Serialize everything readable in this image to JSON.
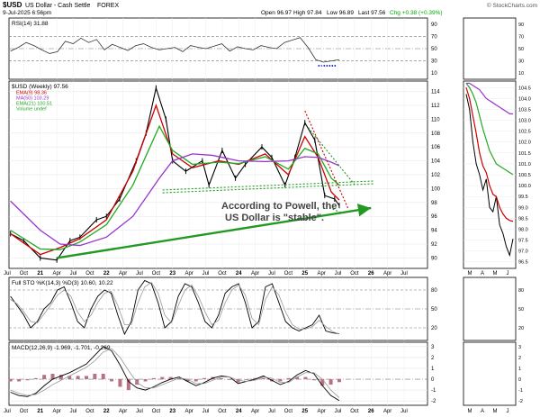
{
  "header": {
    "symbol": "$USD",
    "name": "US Dollar - Cash Settle",
    "exchange": "FOREX",
    "date": "9-Jul-2025 6:56pm",
    "quote": {
      "open": "Open 96.97",
      "high": "High 97.84",
      "low": "Low 96.89",
      "last": "Last 97.56",
      "chg": "Chg +0.38 (+0.39%)"
    },
    "chg_color": "#00aa00",
    "brand": "© StockCharts.com"
  },
  "chart_data": [
    {
      "type": "line",
      "panel": "rsi",
      "title": "RSI(14) 31.88",
      "yticks": [
        10,
        30,
        50,
        70,
        90
      ],
      "ylim": [
        0,
        100
      ],
      "dash_lines": [
        30,
        70
      ],
      "mid_line": 50,
      "series": [
        {
          "values": [
            46,
            52,
            60,
            55,
            48,
            42,
            45,
            62,
            58,
            67,
            60,
            65,
            48,
            57,
            52,
            47,
            55,
            58,
            52,
            48,
            50,
            52,
            45,
            55,
            52,
            50,
            54,
            58,
            46,
            53,
            50,
            48,
            55,
            52,
            50,
            60,
            64,
            68,
            52,
            32,
            28,
            30,
            32
          ]
        }
      ]
    },
    {
      "type": "line",
      "panel": "price",
      "title": "$USD (Weekly) 97.56",
      "legend": [
        {
          "name": "EMA(9) 98.36",
          "color": "#cc0000"
        },
        {
          "name": "MA(50) 103.29",
          "color": "#9933cc"
        },
        {
          "name": "EMA(21) 100.51",
          "color": "#22aa22"
        },
        {
          "name": "Volume undef",
          "color": "#22aa22"
        }
      ],
      "yticks": [
        90,
        92,
        94,
        96,
        98,
        100,
        102,
        104,
        106,
        108,
        110,
        112,
        114
      ],
      "ylim": [
        88.5,
        115.5
      ],
      "xlabels": [
        "Jul",
        "Oct",
        "21",
        "Apr",
        "Jul",
        "Oct",
        "22",
        "Apr",
        "Jul",
        "Oct",
        "23",
        "Apr",
        "Jul",
        "Oct",
        "24",
        "Apr",
        "Jul",
        "Oct",
        "25",
        "Apr",
        "Jul",
        "Oct",
        "26",
        "Apr",
        "Jul"
      ],
      "series": [
        {
          "name": "$USD",
          "color": "#000000",
          "x": [
            2020.55,
            2020.75,
            2021.0,
            2021.25,
            2021.45,
            2021.6,
            2021.85,
            2022.0,
            2022.2,
            2022.45,
            2022.6,
            2022.75,
            2022.9,
            2023.0,
            2023.2,
            2023.45,
            2023.55,
            2023.75,
            2023.95,
            2024.1,
            2024.35,
            2024.5,
            2024.7,
            2024.85,
            2025.0,
            2025.15,
            2025.3,
            2025.45,
            2025.52
          ],
          "values": [
            93.5,
            92.5,
            90.0,
            89.7,
            92.5,
            93.0,
            95.5,
            96.0,
            98.5,
            104.0,
            108.0,
            114.5,
            110.0,
            104.0,
            102.5,
            104.0,
            100.5,
            105.5,
            101.5,
            103.5,
            106.0,
            104.5,
            100.5,
            104.5,
            109.5,
            107.0,
            99.0,
            98.5,
            97.56
          ]
        },
        {
          "name": "EMA(9)",
          "color": "#cc0000",
          "x": [
            2020.55,
            2021.0,
            2021.3,
            2021.6,
            2022.0,
            2022.4,
            2022.75,
            2023.0,
            2023.3,
            2023.7,
            2024.0,
            2024.4,
            2024.75,
            2025.0,
            2025.2,
            2025.4,
            2025.52
          ],
          "values": [
            93.5,
            90.5,
            91.5,
            92.8,
            95.5,
            102.5,
            112.0,
            105.0,
            103.0,
            104.0,
            103.5,
            105.0,
            102.0,
            107.5,
            104.5,
            99.5,
            98.36
          ]
        },
        {
          "name": "EMA(21)",
          "color": "#22aa22",
          "x": [
            2020.55,
            2021.0,
            2021.3,
            2021.6,
            2022.0,
            2022.4,
            2022.8,
            2023.0,
            2023.3,
            2023.7,
            2024.0,
            2024.4,
            2024.75,
            2025.0,
            2025.2,
            2025.4,
            2025.52
          ],
          "values": [
            94.0,
            91.3,
            91.2,
            92.3,
            94.8,
            100.5,
            109.0,
            105.5,
            103.5,
            103.8,
            103.6,
            104.6,
            102.8,
            105.8,
            105.0,
            101.5,
            100.51
          ]
        },
        {
          "name": "MA(50)",
          "color": "#9933cc",
          "x": [
            2020.55,
            2021.0,
            2021.3,
            2021.6,
            2022.0,
            2022.4,
            2022.8,
            2023.0,
            2023.3,
            2023.6,
            2024.0,
            2024.4,
            2024.75,
            2025.0,
            2025.2,
            2025.4,
            2025.52
          ],
          "values": [
            98.2,
            94.0,
            92.0,
            91.8,
            93.0,
            96.0,
            101.5,
            104.0,
            105.0,
            104.8,
            104.0,
            103.9,
            104.0,
            104.6,
            104.5,
            103.8,
            103.29
          ]
        }
      ],
      "annotations": [
        {
          "text_lines": [
            "According to Powell, the",
            "US Dollar is \"stable\"."
          ],
          "color": "#444444"
        }
      ],
      "trendlines": [
        {
          "kind": "arrow",
          "color": "#229922",
          "points": [
            [
              2021.25,
              90.0
            ],
            [
              2026.0,
              97.2
            ]
          ]
        },
        {
          "kind": "dotted",
          "color": "#229922",
          "points": [
            [
              2022.85,
              99.8
            ],
            [
              2026.05,
              101.1
            ]
          ]
        },
        {
          "kind": "dotted",
          "color": "#229922",
          "points": [
            [
              2022.85,
              99.4
            ],
            [
              2026.05,
              100.7
            ]
          ]
        },
        {
          "kind": "dotted",
          "color": "#cc0000",
          "points": [
            [
              2025.0,
              111.2
            ],
            [
              2025.65,
              97.2
            ]
          ]
        },
        {
          "kind": "dotted",
          "color": "#229922",
          "points": [
            [
              2025.05,
              108.8
            ],
            [
              2025.75,
              100.6
            ]
          ]
        },
        {
          "kind": "dotted",
          "color": "#229922",
          "points": [
            [
              2025.32,
              97.5
            ],
            [
              2025.55,
              96.5
            ]
          ]
        }
      ]
    },
    {
      "type": "line",
      "panel": "sto",
      "title": "Full STO %K(14,3) %D(3) 10.60, 10.22",
      "yticks": [
        20,
        50,
        80
      ],
      "ylim": [
        0,
        100
      ],
      "series": [
        {
          "name": "%K",
          "values": [
            70,
            55,
            40,
            20,
            30,
            50,
            60,
            80,
            85,
            60,
            30,
            20,
            50,
            70,
            80,
            75,
            40,
            10,
            30,
            80,
            95,
            90,
            60,
            20,
            30,
            70,
            90,
            85,
            60,
            30,
            20,
            40,
            75,
            85,
            90,
            60,
            20,
            30,
            85,
            90,
            60,
            30,
            20,
            15,
            20,
            25,
            40,
            15,
            12,
            10.6
          ]
        },
        {
          "name": "%D",
          "values": [
            65,
            58,
            45,
            30,
            28,
            42,
            56,
            72,
            80,
            70,
            45,
            30,
            40,
            60,
            75,
            78,
            55,
            25,
            25,
            60,
            85,
            92,
            75,
            40,
            28,
            55,
            80,
            88,
            70,
            45,
            25,
            32,
            60,
            80,
            88,
            72,
            35,
            25,
            65,
            85,
            72,
            45,
            25,
            18,
            18,
            22,
            32,
            22,
            14,
            10.22
          ]
        }
      ]
    },
    {
      "type": "line",
      "panel": "macd",
      "title": "MACD(12,26,9) -1.969, -1.701, -0.269",
      "yticks": [
        -2,
        -1,
        0,
        1,
        2,
        3
      ],
      "ylim": [
        -2.4,
        3.4
      ],
      "series": [
        {
          "name": "MACD",
          "values": [
            -1.2,
            -1.5,
            -1.6,
            -1.3,
            -0.6,
            0.0,
            0.3,
            0.6,
            1.0,
            1.4,
            2.2,
            3.0,
            2.6,
            1.3,
            -0.2,
            -0.8,
            -1.0,
            -0.7,
            -0.3,
            0.0,
            0.2,
            -0.2,
            -0.6,
            -0.3,
            0.1,
            0.3,
            0.2,
            -0.4,
            -0.2,
            0.0,
            0.3,
            -0.1,
            -0.5,
            -0.2,
            0.4,
            0.8,
            0.5,
            -0.6,
            -1.5,
            -1.969
          ]
        },
        {
          "name": "Signal",
          "values": [
            -1.0,
            -1.3,
            -1.5,
            -1.4,
            -1.0,
            -0.5,
            -0.1,
            0.3,
            0.7,
            1.1,
            1.7,
            2.5,
            2.8,
            2.0,
            0.8,
            -0.3,
            -0.8,
            -0.8,
            -0.5,
            -0.2,
            0.1,
            0.0,
            -0.4,
            -0.4,
            -0.1,
            0.2,
            0.2,
            -0.1,
            -0.2,
            -0.1,
            0.2,
            0.1,
            -0.3,
            -0.3,
            0.2,
            0.6,
            0.6,
            0.0,
            -1.0,
            -1.701
          ]
        },
        {
          "name": "Histogram",
          "values": [
            -0.2,
            -0.2,
            -0.1,
            0.1,
            0.4,
            0.5,
            0.4,
            0.3,
            0.3,
            0.3,
            0.5,
            0.5,
            -0.2,
            -0.7,
            -1.0,
            -0.5,
            -0.2,
            0.1,
            0.2,
            0.2,
            0.1,
            -0.2,
            -0.2,
            0.1,
            0.2,
            0.1,
            0.0,
            -0.3,
            0.0,
            0.1,
            0.1,
            -0.2,
            -0.2,
            0.1,
            0.2,
            0.2,
            -0.1,
            -0.6,
            -0.5,
            -0.269
          ]
        }
      ]
    },
    {
      "type": "line",
      "panel": "zoom",
      "title": "",
      "price_yticks": [
        96.5,
        97.0,
        97.5,
        98.0,
        98.5,
        99.0,
        99.5,
        100.0,
        100.5,
        101.0,
        101.5,
        102.0,
        102.5,
        103.0,
        103.5,
        104.0,
        104.5
      ],
      "price_ylim": [
        96.2,
        104.8
      ],
      "rsi_yticks": [
        10,
        30,
        50,
        70,
        90
      ],
      "sto_yticks": [
        20,
        50,
        80
      ],
      "macd_yticks": [
        -2,
        -1,
        0,
        1,
        2,
        3
      ],
      "xlabels": [
        "M",
        "A",
        "M",
        "J"
      ],
      "series": [
        {
          "name": "price",
          "values": [
            104.2,
            103.5,
            102.0,
            101.0,
            100.5,
            99.8,
            100.3,
            99.0,
            98.8,
            99.5,
            98.2,
            97.8,
            97.2,
            96.8,
            97.56
          ]
        },
        {
          "name": "EMA(9)",
          "color": "#cc0000",
          "values": [
            104.5,
            104.0,
            103.2,
            102.4,
            101.5,
            100.9,
            100.6,
            100.0,
            99.6,
            99.5,
            99.0,
            98.7,
            98.5,
            98.4,
            98.36
          ]
        },
        {
          "name": "EMA(21)",
          "color": "#22aa22",
          "values": [
            104.7,
            104.5,
            104.2,
            103.8,
            103.2,
            102.6,
            102.1,
            101.6,
            101.3,
            101.0,
            100.9,
            100.8,
            100.7,
            100.6,
            100.51
          ]
        },
        {
          "name": "MA(50)",
          "color": "#9933cc",
          "values": [
            104.7,
            104.7,
            104.6,
            104.5,
            104.4,
            104.2,
            104.0,
            103.9,
            103.8,
            103.7,
            103.6,
            103.5,
            103.4,
            103.3,
            103.29
          ]
        }
      ]
    }
  ]
}
